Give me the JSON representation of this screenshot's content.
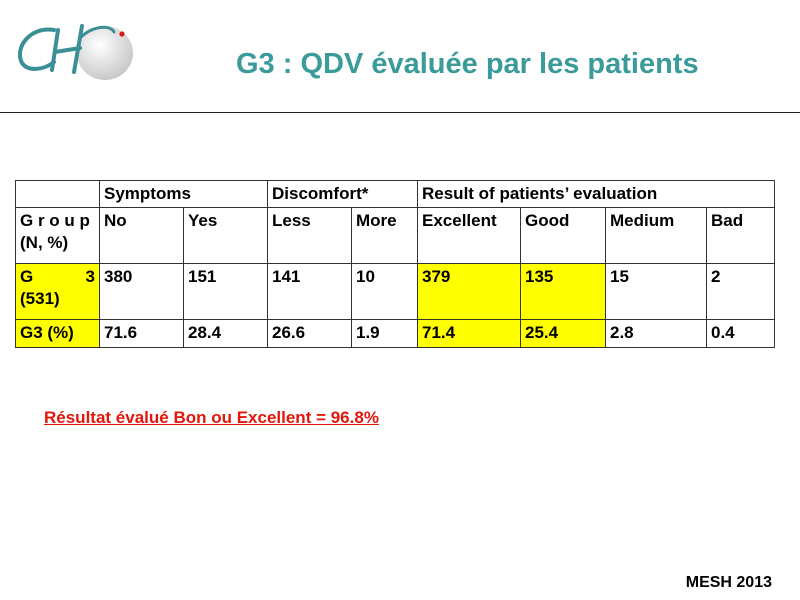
{
  "slide": {
    "title": "G3 : QDV évaluée par les patients",
    "logo_text": "CH",
    "footer": "MESH 2013",
    "result_note": "Résultat évalué Bon ou Excellent = 96.8%"
  },
  "table": {
    "group_headers": {
      "symptoms": "Symptoms",
      "discomfort": "Discomfort*",
      "result": "Result of patients’ evaluation"
    },
    "group_label_line1": "G r o u p",
    "group_label_line2": "(N, %)",
    "columns": [
      "No",
      "Yes",
      "Less",
      "More",
      "Excellent",
      "Good",
      "Medium",
      "Bad"
    ],
    "row1": {
      "label_left": "G",
      "label_right": "3",
      "label_line2": "(531)",
      "values": [
        "380",
        "151",
        "141",
        "10",
        "379",
        "135",
        "15",
        "2"
      ]
    },
    "row2": {
      "label": "G3 (%)",
      "values": [
        "71.6",
        "28.4",
        "26.6",
        "1.9",
        "71.4",
        "25.4",
        "2.8",
        "0.4"
      ]
    }
  },
  "colors": {
    "title": "#3b9a9a",
    "highlight": "#ffff00",
    "note": "#e3160a"
  }
}
